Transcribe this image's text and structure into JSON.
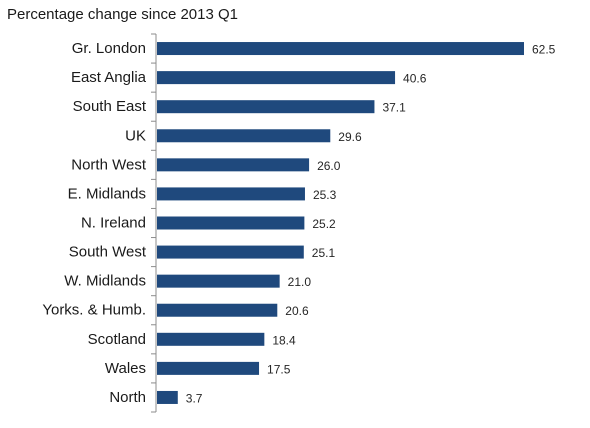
{
  "chart_data": {
    "type": "bar",
    "orientation": "horizontal",
    "title": "Percentage change since 2013 Q1",
    "xlabel": "",
    "ylabel": "",
    "categories": [
      "Gr. London",
      "East Anglia",
      "South East",
      "UK",
      "North West",
      "E. Midlands",
      "N. Ireland",
      "South West",
      "W. Midlands",
      "Yorks. & Humb.",
      "Scotland",
      "Wales",
      "North"
    ],
    "values": [
      62.5,
      40.6,
      37.1,
      29.6,
      26.0,
      25.3,
      25.2,
      25.1,
      21.0,
      20.6,
      18.4,
      17.5,
      3.7
    ],
    "value_labels": [
      "62.5",
      "40.6",
      "37.1",
      "29.6",
      "26.0",
      "25.3",
      "25.2",
      "25.1",
      "21.0",
      "20.6",
      "18.4",
      "17.5",
      "3.7"
    ],
    "xlim": [
      0,
      62.5
    ],
    "grid": false,
    "legend": "none",
    "bar_color": "#1f497d",
    "axis_color": "#8c8c8c"
  }
}
